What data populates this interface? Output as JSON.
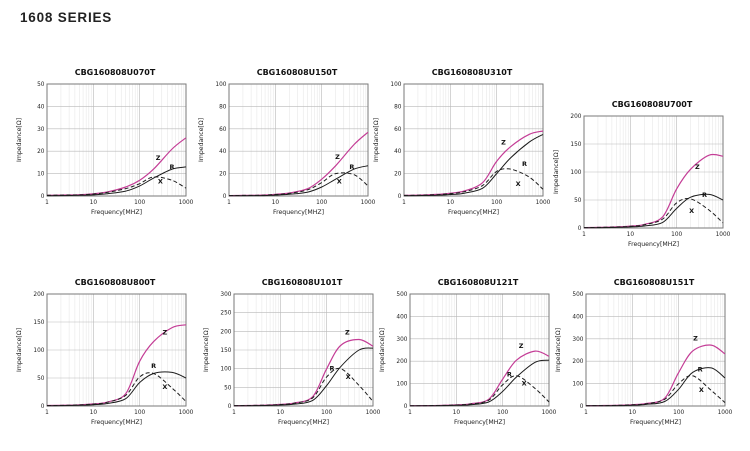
{
  "page": {
    "title": "1608 SERIES"
  },
  "colors": {
    "z_curve": "#c43d96",
    "r_curve": "#1c1c1c",
    "x_curve": "#1c1c1c",
    "grid_major": "#b9b9b9",
    "grid_minor": "#e3e3e3",
    "frame": "#7a7a7a",
    "text": "#222222"
  },
  "chart_data": [
    {
      "type": "line",
      "title": "CBG160808U070T",
      "xlabel": "Frequency[MHZ]",
      "ylabel": "Impedance[Ω]",
      "xscale": "log",
      "xlim": [
        1,
        1000
      ],
      "xticks": [
        1,
        10,
        100,
        1000
      ],
      "ylim": [
        0,
        50
      ],
      "yticks": [
        0,
        10,
        20,
        30,
        40,
        50
      ],
      "grid": true,
      "x": [
        1,
        2,
        5,
        10,
        20,
        50,
        100,
        200,
        500,
        1000
      ],
      "series": [
        {
          "name": "Z",
          "color": "#c43d96",
          "dash": "none",
          "values": [
            0.3,
            0.4,
            0.6,
            1.0,
            1.8,
            4.0,
            7.0,
            12,
            21,
            26
          ],
          "label": [
            250,
            16
          ]
        },
        {
          "name": "R",
          "color": "#1c1c1c",
          "dash": "none",
          "values": [
            0.1,
            0.2,
            0.3,
            0.5,
            1.0,
            2.2,
            4.5,
            8,
            12,
            13
          ],
          "label": [
            500,
            12
          ]
        },
        {
          "name": "X",
          "color": "#1c1c1c",
          "dash": "4,2.5",
          "values": [
            0.3,
            0.4,
            0.5,
            0.9,
            1.6,
            3.3,
            5.5,
            8.5,
            7,
            3.5
          ],
          "label": [
            280,
            5.5
          ]
        }
      ]
    },
    {
      "type": "line",
      "title": "CBG160808U150T",
      "xlabel": "Frequency[MHZ]",
      "ylabel": "Impedance[Ω]",
      "xscale": "log",
      "xlim": [
        1,
        1000
      ],
      "xticks": [
        1,
        10,
        100,
        1000
      ],
      "ylim": [
        0,
        100
      ],
      "yticks": [
        0,
        20,
        40,
        60,
        80,
        100
      ],
      "grid": true,
      "x": [
        1,
        2,
        5,
        10,
        20,
        50,
        100,
        200,
        500,
        1000
      ],
      "series": [
        {
          "name": "Z",
          "color": "#c43d96",
          "dash": "none",
          "values": [
            0.4,
            0.5,
            0.8,
            1.5,
            2.7,
            6.5,
            15,
            27,
            46,
            57
          ],
          "label": [
            220,
            33
          ]
        },
        {
          "name": "R",
          "color": "#1c1c1c",
          "dash": "none",
          "values": [
            0.2,
            0.3,
            0.4,
            0.8,
            1.5,
            3.5,
            8,
            15,
            24,
            27
          ],
          "label": [
            450,
            24
          ]
        },
        {
          "name": "X",
          "color": "#1c1c1c",
          "dash": "4,2.5",
          "values": [
            0.4,
            0.5,
            0.7,
            1.3,
            2.3,
            5.5,
            12,
            20,
            19,
            9
          ],
          "label": [
            240,
            11
          ]
        }
      ]
    },
    {
      "type": "line",
      "title": "CBG160808U310T",
      "xlabel": "Frequency[MHZ]",
      "ylabel": "Impedance[Ω]",
      "xscale": "log",
      "xlim": [
        1,
        1000
      ],
      "xticks": [
        1,
        10,
        100,
        1000
      ],
      "ylim": [
        0,
        100
      ],
      "yticks": [
        0,
        20,
        40,
        60,
        80,
        100
      ],
      "grid": true,
      "x": [
        1,
        2,
        5,
        10,
        20,
        50,
        100,
        200,
        500,
        1000
      ],
      "series": [
        {
          "name": "Z",
          "color": "#c43d96",
          "dash": "none",
          "values": [
            0.6,
            0.8,
            1.4,
            2.5,
            4.5,
            12,
            31,
            44,
            55,
            58
          ],
          "label": [
            140,
            46
          ]
        },
        {
          "name": "R",
          "color": "#1c1c1c",
          "dash": "none",
          "values": [
            0.3,
            0.4,
            0.7,
            1.3,
            2.5,
            7,
            20,
            34,
            48,
            55
          ],
          "label": [
            400,
            27
          ]
        },
        {
          "name": "X",
          "color": "#1c1c1c",
          "dash": "4,2.5",
          "values": [
            0.5,
            0.7,
            1.2,
            2.1,
            3.8,
            9.5,
            22,
            24,
            17,
            6
          ],
          "label": [
            290,
            9
          ]
        }
      ]
    },
    {
      "type": "line",
      "title": "CBG160808U700T",
      "xlabel": "Frequency[MHZ]",
      "ylabel": "Impedance[Ω]",
      "xscale": "log",
      "xlim": [
        1,
        1000
      ],
      "xticks": [
        1,
        10,
        100,
        1000
      ],
      "ylim": [
        0,
        200
      ],
      "yticks": [
        0,
        50,
        100,
        150,
        200
      ],
      "grid": true,
      "x": [
        1,
        2,
        5,
        10,
        20,
        50,
        100,
        200,
        500,
        1000
      ],
      "series": [
        {
          "name": "Z",
          "color": "#c43d96",
          "dash": "none",
          "values": [
            0.8,
            1.1,
            1.9,
            3.4,
            6.5,
            20,
            70,
            105,
            130,
            128
          ],
          "label": [
            280,
            105
          ]
        },
        {
          "name": "R",
          "color": "#1c1c1c",
          "dash": "none",
          "values": [
            0.4,
            0.6,
            1.0,
            1.9,
            3.6,
            10,
            35,
            55,
            60,
            50
          ],
          "label": [
            400,
            55
          ]
        },
        {
          "name": "X",
          "color": "#1c1c1c",
          "dash": "4,2.5",
          "values": [
            0.7,
            1.0,
            1.7,
            3.0,
            5.8,
            16,
            45,
            52,
            32,
            9
          ],
          "label": [
            210,
            27
          ]
        }
      ]
    },
    {
      "type": "line",
      "title": "CBG160808U800T",
      "xlabel": "Frequency[MHZ]",
      "ylabel": "Impedance[Ω]",
      "xscale": "log",
      "xlim": [
        1,
        1000
      ],
      "xticks": [
        1,
        10,
        100,
        1000
      ],
      "ylim": [
        0,
        200
      ],
      "yticks": [
        0,
        50,
        100,
        150,
        200
      ],
      "grid": true,
      "x": [
        1,
        2,
        5,
        10,
        20,
        50,
        100,
        200,
        500,
        1000
      ],
      "series": [
        {
          "name": "Z",
          "color": "#c43d96",
          "dash": "none",
          "values": [
            0.9,
            1.2,
            2.1,
            3.7,
            7,
            22,
            80,
            115,
            140,
            145
          ],
          "label": [
            350,
            128
          ]
        },
        {
          "name": "R",
          "color": "#1c1c1c",
          "dash": "none",
          "values": [
            0.5,
            0.7,
            1.2,
            2.3,
            4.5,
            13,
            42,
            58,
            60,
            50
          ],
          "label": [
            200,
            68
          ]
        },
        {
          "name": "X",
          "color": "#1c1c1c",
          "dash": "4,2.5",
          "values": [
            0.8,
            1.1,
            1.9,
            3.4,
            6.6,
            19,
            52,
            58,
            32,
            8
          ],
          "label": [
            350,
            30
          ]
        }
      ]
    },
    {
      "type": "line",
      "title": "CBG160808U101T",
      "xlabel": "Frequency[MHZ]",
      "ylabel": "Impedance[Ω]",
      "xscale": "log",
      "xlim": [
        1,
        1000
      ],
      "xticks": [
        1,
        10,
        100,
        1000
      ],
      "ylim": [
        0,
        300
      ],
      "yticks": [
        0,
        50,
        100,
        150,
        200,
        250,
        300
      ],
      "grid": true,
      "x": [
        1,
        2,
        5,
        10,
        20,
        50,
        100,
        200,
        500,
        1000
      ],
      "series": [
        {
          "name": "Z",
          "color": "#c43d96",
          "dash": "none",
          "values": [
            1,
            1.4,
            2.4,
            4.2,
            8,
            25,
            100,
            162,
            178,
            160
          ],
          "label": [
            280,
            192
          ]
        },
        {
          "name": "R",
          "color": "#1c1c1c",
          "dash": "none",
          "values": [
            0.5,
            0.8,
            1.4,
            2.6,
            5,
            15,
            55,
            105,
            150,
            155
          ],
          "label": [
            130,
            95
          ]
        },
        {
          "name": "X",
          "color": "#1c1c1c",
          "dash": "4,2.5",
          "values": [
            0.9,
            1.3,
            2.2,
            3.9,
            7.5,
            22,
            78,
            100,
            55,
            12
          ],
          "label": [
            290,
            72
          ]
        }
      ]
    },
    {
      "type": "line",
      "title": "CBG160808U121T",
      "xlabel": "Frequency[MHZ]",
      "ylabel": "Impedance[Ω]",
      "xscale": "log",
      "xlim": [
        1,
        1000
      ],
      "xticks": [
        1,
        10,
        100,
        1000
      ],
      "ylim": [
        0,
        500
      ],
      "yticks": [
        0,
        100,
        200,
        300,
        400,
        500
      ],
      "grid": true,
      "x": [
        1,
        2,
        5,
        10,
        20,
        50,
        100,
        200,
        500,
        1000
      ],
      "series": [
        {
          "name": "Z",
          "color": "#c43d96",
          "dash": "none",
          "values": [
            1.2,
            1.7,
            3,
            5.2,
            10,
            30,
            120,
            205,
            245,
            222
          ],
          "label": [
            250,
            258
          ]
        },
        {
          "name": "R",
          "color": "#1c1c1c",
          "dash": "none",
          "values": [
            0.6,
            0.9,
            1.6,
            3,
            6,
            18,
            65,
            130,
            195,
            205
          ],
          "label": [
            140,
            132
          ]
        },
        {
          "name": "X",
          "color": "#1c1c1c",
          "dash": "4,2.5",
          "values": [
            1.0,
            1.5,
            2.6,
            4.6,
            9,
            26,
            95,
            135,
            78,
            18
          ],
          "label": [
            290,
            92
          ]
        }
      ]
    },
    {
      "type": "line",
      "title": "CBG160808U151T",
      "xlabel": "Frequency[MHZ]",
      "ylabel": "Impedance[Ω]",
      "xscale": "log",
      "xlim": [
        1,
        1000
      ],
      "xticks": [
        1,
        10,
        100,
        1000
      ],
      "ylim": [
        0,
        500
      ],
      "yticks": [
        0,
        100,
        200,
        300,
        400,
        500
      ],
      "grid": true,
      "x": [
        1,
        2,
        5,
        10,
        20,
        50,
        100,
        200,
        500,
        1000
      ],
      "series": [
        {
          "name": "Z",
          "color": "#c43d96",
          "dash": "none",
          "values": [
            1.4,
            2,
            3.5,
            6,
            11,
            35,
            150,
            245,
            272,
            232
          ],
          "label": [
            230,
            292
          ]
        },
        {
          "name": "R",
          "color": "#1c1c1c",
          "dash": "none",
          "values": [
            0.7,
            1,
            1.8,
            3.4,
            7,
            20,
            75,
            150,
            170,
            125
          ],
          "label": [
            290,
            155
          ]
        },
        {
          "name": "X",
          "color": "#1c1c1c",
          "dash": "4,2.5",
          "values": [
            1.2,
            1.7,
            3,
            5.5,
            10,
            30,
            100,
            135,
            70,
            15
          ],
          "label": [
            310,
            62
          ]
        }
      ]
    }
  ]
}
